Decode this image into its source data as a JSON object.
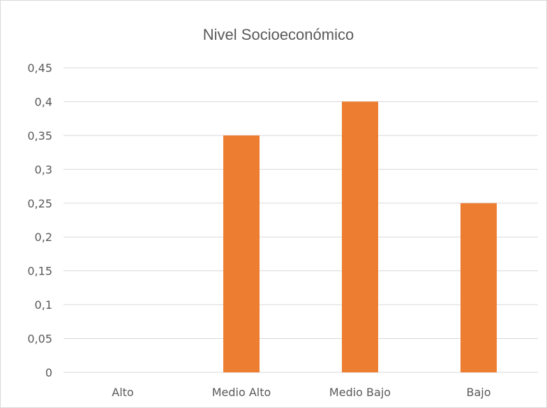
{
  "chart_data": {
    "type": "bar",
    "title": "Nivel Socioeconómico",
    "categories": [
      "Alto",
      "Medio Alto",
      "Medio Bajo",
      "Bajo"
    ],
    "values": [
      0,
      0.35,
      0.4,
      0.25
    ],
    "ylim": [
      0,
      0.45
    ],
    "yticks": [
      0,
      0.05,
      0.1,
      0.15,
      0.2,
      0.25,
      0.3,
      0.35,
      0.4,
      0.45
    ],
    "ytick_labels": [
      "0",
      "0,05",
      "0,1",
      "0,15",
      "0,2",
      "0,25",
      "0,3",
      "0,35",
      "0,4",
      "0,45"
    ],
    "grid": true,
    "legend": "none",
    "bar_color": "#ED7D31"
  }
}
